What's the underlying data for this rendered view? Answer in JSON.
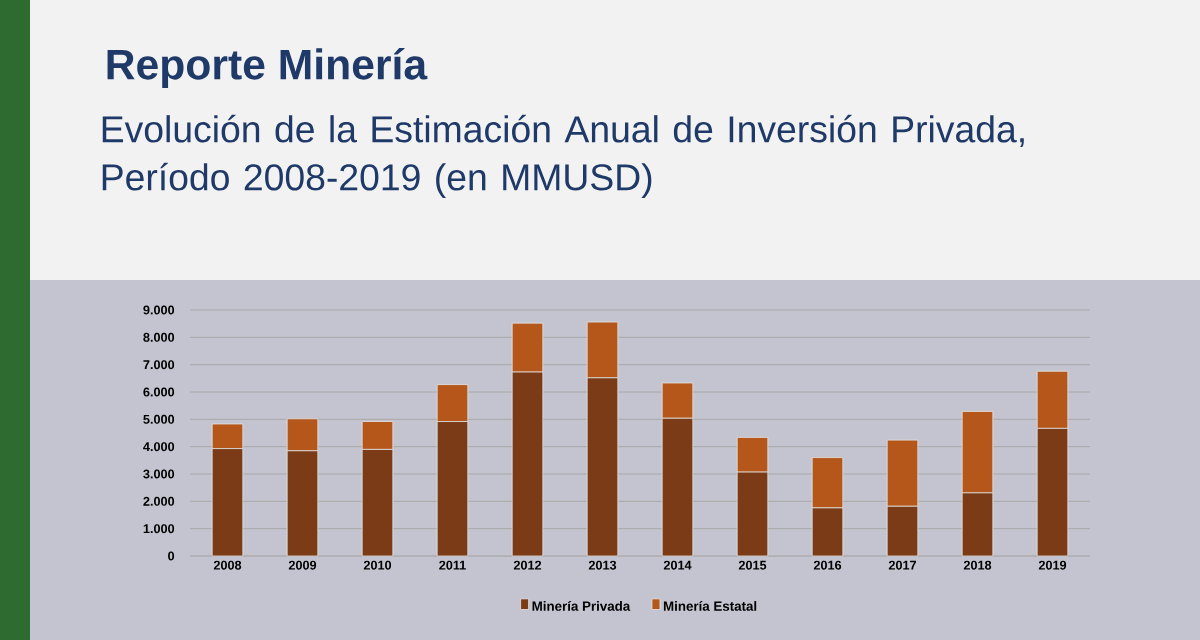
{
  "chart_data": {
    "type": "bar",
    "title": "Reporte Minería",
    "subtitle": "Evolución de la Estimación Anual de Inversión Privada, Período 2008-2019 (en MMUSD)",
    "categories": [
      "2008",
      "2009",
      "2010",
      "2011",
      "2012",
      "2013",
      "2014",
      "2015",
      "2016",
      "2017",
      "2018",
      "2019"
    ],
    "stacked": true,
    "series": [
      {
        "name": "Minería Privada",
        "color": "#7b3b17",
        "values": [
          3930,
          3850,
          3900,
          4920,
          6730,
          6520,
          5040,
          3070,
          1760,
          1820,
          2310,
          4670
        ]
      },
      {
        "name": "Minería Estatal",
        "color": "#b5561a",
        "values": [
          900,
          1170,
          1020,
          1350,
          1790,
          2040,
          1290,
          1270,
          1840,
          2420,
          2980,
          2090
        ]
      }
    ],
    "ylim": [
      0,
      9000
    ],
    "yticks": [
      {
        "value": 0,
        "label": "0"
      },
      {
        "value": 1000,
        "label": "1.000"
      },
      {
        "value": 2000,
        "label": "2.000"
      },
      {
        "value": 3000,
        "label": "3.000"
      },
      {
        "value": 4000,
        "label": "4.000"
      },
      {
        "value": 5000,
        "label": "5.000"
      },
      {
        "value": 6000,
        "label": "6.000"
      },
      {
        "value": 7000,
        "label": "7.000"
      },
      {
        "value": 8000,
        "label": "8.000"
      },
      {
        "value": 9000,
        "label": "9.000"
      }
    ],
    "grid": "y",
    "legend": "bottom"
  }
}
